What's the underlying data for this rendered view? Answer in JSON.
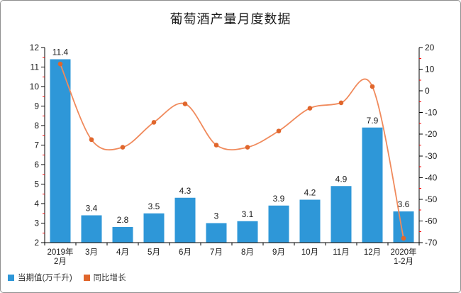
{
  "frame": {
    "background": "#ffffff",
    "border_color": "#8f8f8f"
  },
  "chart_data": {
    "type": "combo (bar + line)",
    "title": "葡萄酒产量月度数据",
    "categories": [
      "2019年\n2月",
      "3月",
      "4月",
      "5月",
      "6月",
      "7月",
      "8月",
      "9月",
      "10月",
      "11月",
      "12月",
      "2020年\n1-2月"
    ],
    "series": [
      {
        "name": "当期值(万千升)",
        "type": "bar",
        "axis": "left",
        "color": "#2e97d8",
        "values": [
          11.4,
          3.4,
          2.8,
          3.5,
          4.3,
          3,
          3.1,
          3.9,
          4.2,
          4.9,
          7.9,
          3.6
        ],
        "labels": [
          "11.4",
          "3.4",
          "2.8",
          "3.5",
          "4.3",
          "3",
          "3.1",
          "3.9",
          "4.2",
          "4.9",
          "7.9",
          "3.6"
        ]
      },
      {
        "name": "同比增长",
        "type": "line",
        "axis": "right",
        "color": "#f08a5c",
        "marker_color": "#e0662c",
        "values": [
          12.4,
          -22.5,
          -26,
          -14.5,
          -6,
          -25,
          -26,
          -18.5,
          -8,
          -5.5,
          2,
          -68
        ]
      }
    ],
    "left_axis": {
      "min": 2,
      "max": 12,
      "major": 1,
      "minor": 0.5,
      "tick_labels": [
        "2",
        "3",
        "4",
        "5",
        "6",
        "7",
        "8",
        "9",
        "10",
        "11",
        "12"
      ]
    },
    "right_axis": {
      "min": -70,
      "max": 20,
      "major": 10,
      "minor": 5,
      "tick_labels": [
        "-70",
        "-60",
        "-50",
        "-40",
        "-30",
        "-20",
        "-10",
        "0",
        "10",
        "20"
      ]
    },
    "grid": "off",
    "axis_color": "#000000",
    "minor_tick_color": "#ff0000",
    "label_color": "#1a1a1a",
    "legend_position": "bottom-left",
    "legend": [
      {
        "label": "当期值(万千升)",
        "color": "#2e97d8"
      },
      {
        "label": "同比增长",
        "color": "#e0662c"
      }
    ]
  }
}
